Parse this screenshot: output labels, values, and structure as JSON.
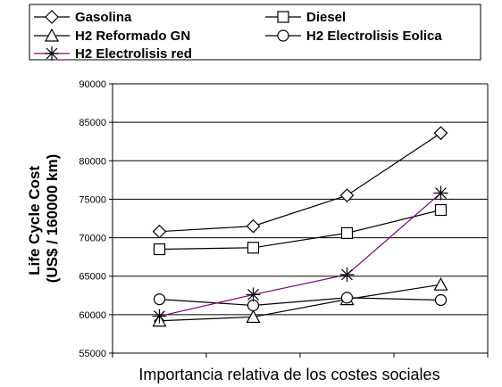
{
  "chart_data": {
    "type": "line",
    "title": "",
    "xlabel": "Importancia relativa de los costes sociales",
    "ylabel": "Life Cycle Cost (US$ / 160000 km)",
    "ylabel_lines": [
      "Life Cycle Cost",
      "(US$ / 160000 km)"
    ],
    "ylim": [
      55000,
      90000
    ],
    "yticks": [
      "55000",
      "60000",
      "65000",
      "70000",
      "75000",
      "80000",
      "85000",
      "90000"
    ],
    "x": [
      1,
      2,
      3,
      4
    ],
    "xlim": [
      0.5,
      4.5
    ],
    "x_tick_positions": [
      0.5,
      1.5,
      2.5,
      3.5,
      4.5
    ],
    "grid": true,
    "legend_position": "top",
    "series": [
      {
        "name": "Gasolina",
        "marker": "diamond",
        "color": "#000000",
        "values": [
          70800,
          71500,
          75500,
          83600
        ]
      },
      {
        "name": "Diesel",
        "marker": "square",
        "color": "#000000",
        "values": [
          68500,
          68700,
          70600,
          73600
        ]
      },
      {
        "name": "H2 Reformado GN",
        "marker": "triangle",
        "color": "#000000",
        "values": [
          59200,
          59700,
          62000,
          63900
        ]
      },
      {
        "name": "H2 Electrolisis Eolica",
        "marker": "circle",
        "color": "#000000",
        "values": [
          62000,
          61200,
          62200,
          61900
        ]
      },
      {
        "name": "H2 Electrolisis red",
        "marker": "star",
        "color": "#800080",
        "values": [
          59800,
          62600,
          65200,
          75800
        ]
      }
    ]
  }
}
